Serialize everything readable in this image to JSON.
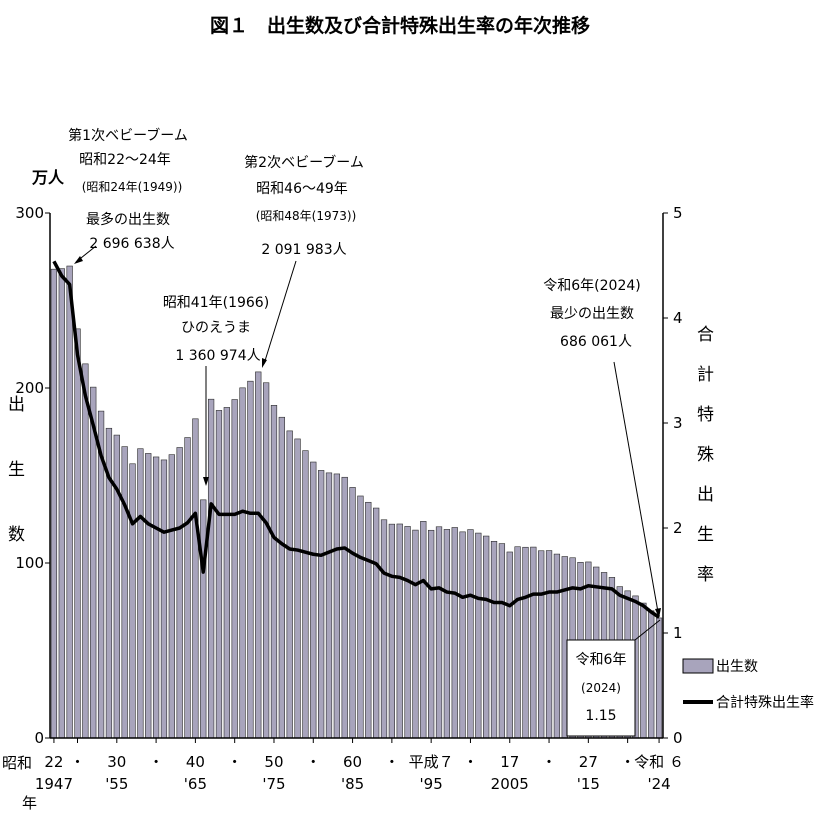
{
  "chart_data": {
    "type": "bar",
    "title": "図１　出生数及び合計特殊出生率の年次推移",
    "left_axis": {
      "unit": "万人",
      "label_chars": [
        "出",
        "生",
        "数"
      ],
      "ylim": [
        0,
        300
      ],
      "ticks": [
        "0",
        "100",
        "200",
        "300"
      ]
    },
    "right_axis": {
      "label_chars": [
        "合",
        "計",
        "特",
        "殊",
        "出",
        "生",
        "率"
      ],
      "ylim": [
        0,
        5
      ],
      "ticks": [
        "0",
        "1",
        "2",
        "3",
        "4",
        "5"
      ]
    },
    "x_range": [
      1947,
      2024
    ],
    "x_labels": [
      {
        "year": 1947,
        "top": "22",
        "bottom": "1947"
      },
      {
        "year": 1950,
        "top": "・",
        "bottom": ""
      },
      {
        "year": 1955,
        "top": "30",
        "bottom": "'55"
      },
      {
        "year": 1960,
        "top": "・",
        "bottom": ""
      },
      {
        "year": 1965,
        "top": "40",
        "bottom": "'65"
      },
      {
        "year": 1970,
        "top": "・",
        "bottom": ""
      },
      {
        "year": 1975,
        "top": "50",
        "bottom": "'75"
      },
      {
        "year": 1980,
        "top": "・",
        "bottom": ""
      },
      {
        "year": 1985,
        "top": "60",
        "bottom": "'85"
      },
      {
        "year": 1990,
        "top": "・",
        "bottom": ""
      },
      {
        "year": 1995,
        "top": "平成７",
        "bottom": "'95"
      },
      {
        "year": 2000,
        "top": "・",
        "bottom": ""
      },
      {
        "year": 2005,
        "top": "17",
        "bottom": "2005"
      },
      {
        "year": 2010,
        "top": "・",
        "bottom": ""
      },
      {
        "year": 2015,
        "top": "27",
        "bottom": "'15"
      },
      {
        "year": 2020,
        "top": "・",
        "bottom": ""
      },
      {
        "year": 2024,
        "top": "令和 ６",
        "bottom": "'24"
      }
    ],
    "x_era_label": "昭和",
    "x_year_label": "年",
    "series": [
      {
        "name": "出生数",
        "type": "bar",
        "color": "#a8a4bc",
        "x": [
          1947,
          1948,
          1949,
          1950,
          1951,
          1952,
          1953,
          1954,
          1955,
          1956,
          1957,
          1958,
          1959,
          1960,
          1961,
          1962,
          1963,
          1964,
          1965,
          1966,
          1967,
          1968,
          1969,
          1970,
          1971,
          1972,
          1973,
          1974,
          1975,
          1976,
          1977,
          1978,
          1979,
          1980,
          1981,
          1982,
          1983,
          1984,
          1985,
          1986,
          1987,
          1988,
          1989,
          1990,
          1991,
          1992,
          1993,
          1994,
          1995,
          1996,
          1997,
          1998,
          1999,
          2000,
          2001,
          2002,
          2003,
          2004,
          2005,
          2006,
          2007,
          2008,
          2009,
          2010,
          2011,
          2012,
          2013,
          2014,
          2015,
          2016,
          2017,
          2018,
          2019,
          2020,
          2021,
          2022,
          2023,
          2024
        ],
        "values": [
          267.9,
          268.2,
          269.7,
          233.8,
          213.8,
          200.5,
          186.8,
          177.0,
          173.1,
          166.5,
          156.7,
          165.3,
          162.6,
          160.6,
          158.9,
          161.9,
          166.0,
          171.7,
          182.4,
          136.1,
          193.6,
          187.2,
          188.9,
          193.4,
          200.1,
          203.9,
          209.2,
          203.0,
          190.1,
          183.3,
          175.5,
          170.9,
          164.2,
          157.7,
          152.9,
          151.5,
          150.9,
          149.0,
          143.2,
          138.3,
          134.7,
          131.4,
          124.7,
          122.2,
          122.3,
          120.9,
          118.8,
          123.8,
          118.7,
          120.7,
          119.2,
          120.3,
          117.8,
          119.1,
          117.1,
          115.4,
          112.4,
          111.1,
          106.3,
          109.3,
          109.0,
          109.1,
          107.0,
          107.1,
          105.1,
          103.7,
          103.0,
          100.4,
          100.6,
          97.7,
          94.6,
          91.8,
          86.5,
          84.1,
          81.2,
          77.1,
          72.7,
          68.6
        ]
      },
      {
        "name": "合計特殊出生率",
        "type": "line",
        "color": "#000000",
        "x": [
          1947,
          1948,
          1949,
          1950,
          1951,
          1952,
          1953,
          1954,
          1955,
          1956,
          1957,
          1958,
          1959,
          1960,
          1961,
          1962,
          1963,
          1964,
          1965,
          1966,
          1967,
          1968,
          1969,
          1970,
          1971,
          1972,
          1973,
          1974,
          1975,
          1976,
          1977,
          1978,
          1979,
          1980,
          1981,
          1982,
          1983,
          1984,
          1985,
          1986,
          1987,
          1988,
          1989,
          1990,
          1991,
          1992,
          1993,
          1994,
          1995,
          1996,
          1997,
          1998,
          1999,
          2000,
          2001,
          2002,
          2003,
          2004,
          2005,
          2006,
          2007,
          2008,
          2009,
          2010,
          2011,
          2012,
          2013,
          2014,
          2015,
          2016,
          2017,
          2018,
          2019,
          2020,
          2021,
          2022,
          2023,
          2024
        ],
        "values": [
          4.54,
          4.4,
          4.32,
          3.65,
          3.26,
          2.98,
          2.69,
          2.48,
          2.37,
          2.22,
          2.04,
          2.11,
          2.04,
          2.0,
          1.96,
          1.98,
          2.0,
          2.05,
          2.14,
          1.58,
          2.23,
          2.13,
          2.13,
          2.13,
          2.16,
          2.14,
          2.14,
          2.05,
          1.91,
          1.85,
          1.8,
          1.79,
          1.77,
          1.75,
          1.74,
          1.77,
          1.8,
          1.81,
          1.76,
          1.72,
          1.69,
          1.66,
          1.57,
          1.54,
          1.53,
          1.5,
          1.46,
          1.5,
          1.42,
          1.43,
          1.39,
          1.38,
          1.34,
          1.36,
          1.33,
          1.32,
          1.29,
          1.29,
          1.26,
          1.32,
          1.34,
          1.37,
          1.37,
          1.39,
          1.39,
          1.41,
          1.43,
          1.42,
          1.45,
          1.44,
          1.43,
          1.42,
          1.36,
          1.33,
          1.3,
          1.26,
          1.2,
          1.15
        ]
      }
    ],
    "annotations": {
      "baby_boom_1": [
        "第1次ベビーブーム",
        "昭和22～24年",
        "(昭和24年(1949))",
        "最多の出生数",
        "2 696 638人"
      ],
      "baby_boom_2": [
        "第2次ベビーブーム",
        "昭和46～49年",
        "(昭和48年(1973))",
        "2 091 983人"
      ],
      "hinoeuma": [
        "昭和41年(1966)",
        "ひのえうま",
        "1 360 974人"
      ],
      "min_2024": [
        "令和6年(2024)",
        "最少の出生数",
        "686 061人"
      ],
      "tfr_2024_box": [
        "令和6年",
        "(2024)",
        "1.15"
      ]
    },
    "legend": [
      {
        "label": "出生数",
        "kind": "bar"
      },
      {
        "label": "合計特殊出生率",
        "kind": "line"
      }
    ]
  }
}
